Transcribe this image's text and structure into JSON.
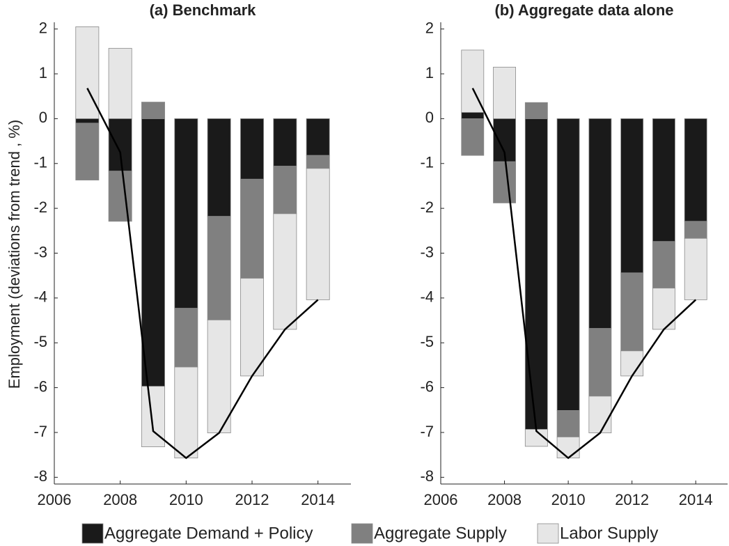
{
  "chart_data": [
    {
      "type": "bar",
      "stacked": true,
      "title": "(a) Benchmark",
      "ylabel": "Employment (deviations from trend , %)",
      "x": [
        2007,
        2008,
        2009,
        2010,
        2011,
        2012,
        2013,
        2014
      ],
      "series": [
        {
          "name": "Aggregate Demand + Policy",
          "color": "#1a1a1a",
          "values": [
            -0.1,
            -1.17,
            -5.97,
            -4.23,
            -2.18,
            -1.35,
            -1.06,
            -0.82
          ]
        },
        {
          "name": "Aggregate Supply",
          "color": "#808080",
          "values": [
            -1.27,
            -1.12,
            0.37,
            -1.31,
            -2.31,
            -2.21,
            -1.06,
            -0.29
          ]
        },
        {
          "name": "Labor Supply",
          "color": "#e6e6e6",
          "values": [
            2.05,
            1.57,
            -1.35,
            -2.03,
            -2.52,
            -2.18,
            -2.58,
            -2.93
          ]
        },
        {
          "type": "line",
          "color": "#000000",
          "values": [
            0.68,
            -0.75,
            -6.97,
            -7.57,
            -7.01,
            -5.74,
            -4.7,
            -4.04
          ]
        }
      ],
      "xlim": [
        2006,
        2015
      ],
      "xticks": [
        2006,
        2008,
        2010,
        2012,
        2014
      ],
      "ylim": [
        -8.15,
        2.15
      ],
      "yticks": [
        -8,
        -7,
        -6,
        -5,
        -4,
        -3,
        -2,
        -1,
        0,
        1,
        2
      ]
    },
    {
      "type": "bar",
      "stacked": true,
      "title": "(b) Aggregate data alone",
      "x": [
        2007,
        2008,
        2009,
        2010,
        2011,
        2012,
        2013,
        2014
      ],
      "series": [
        {
          "color": "#1a1a1a",
          "values": [
            0.14,
            -0.96,
            -6.93,
            -6.51,
            -4.68,
            -3.44,
            -2.74,
            -2.29
          ]
        },
        {
          "color": "#808080",
          "values": [
            -0.82,
            -0.92,
            0.36,
            -0.59,
            -1.51,
            -1.74,
            -1.04,
            -0.38
          ]
        },
        {
          "color": "#e6e6e6",
          "values": [
            1.39,
            1.15,
            -0.38,
            -0.47,
            -0.82,
            -0.56,
            -0.92,
            -1.37
          ]
        },
        {
          "type": "line",
          "color": "#000000",
          "values": [
            0.68,
            -0.75,
            -6.97,
            -7.57,
            -7.01,
            -5.74,
            -4.7,
            -4.04
          ]
        }
      ],
      "xlim": [
        2006,
        2015
      ],
      "xticks": [
        2006,
        2008,
        2010,
        2012,
        2014
      ],
      "ylim": [
        -8.15,
        2.15
      ],
      "yticks": [
        -8,
        -7,
        -6,
        -5,
        -4,
        -3,
        -2,
        -1,
        0,
        1,
        2
      ]
    }
  ]
}
